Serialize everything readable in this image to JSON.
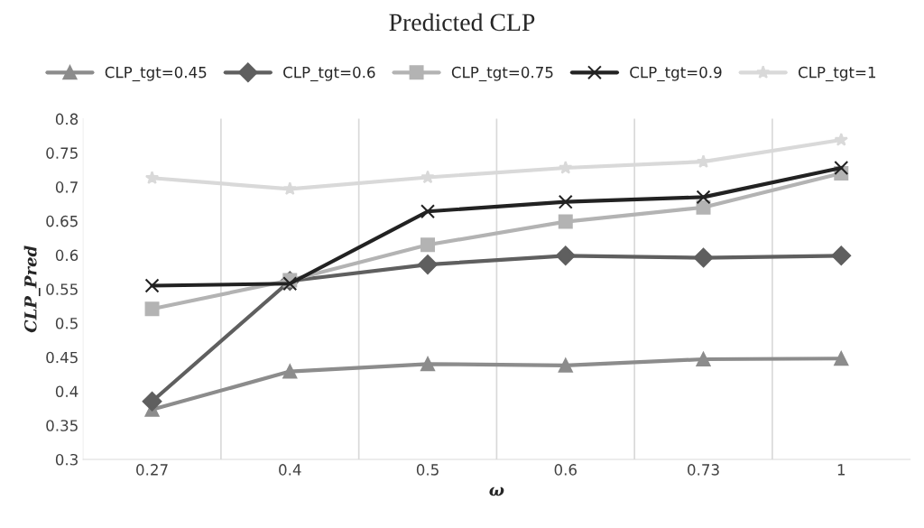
{
  "chart_data": {
    "type": "line",
    "title": "Predicted CLP",
    "xlabel": "ω",
    "ylabel": "CLP_Pred",
    "categories": [
      "0.27",
      "0.4",
      "0.5",
      "0.6",
      "0.73",
      "1"
    ],
    "ylim": [
      0.3,
      0.8
    ],
    "yticks": [
      0.3,
      0.35,
      0.4,
      0.45,
      0.5,
      0.55,
      0.6,
      0.65,
      0.7,
      0.75,
      0.8
    ],
    "grid": "x",
    "legend": "top",
    "series": [
      {
        "name": "CLP_tgt=0.45",
        "color": "#8c8c8c",
        "marker": "triangle",
        "values": [
          0.373,
          0.429,
          0.44,
          0.438,
          0.447,
          0.448
        ]
      },
      {
        "name": "CLP_tgt=0.6",
        "color": "#5f5f5f",
        "marker": "diamond",
        "values": [
          0.385,
          0.562,
          0.586,
          0.599,
          0.596,
          0.599
        ]
      },
      {
        "name": "CLP_tgt=0.75",
        "color": "#b3b3b3",
        "marker": "square",
        "values": [
          0.521,
          0.563,
          0.615,
          0.649,
          0.67,
          0.72
        ]
      },
      {
        "name": "CLP_tgt=0.9",
        "color": "#222222",
        "marker": "cross",
        "values": [
          0.555,
          0.558,
          0.664,
          0.678,
          0.685,
          0.728
        ]
      },
      {
        "name": "CLP_tgt=1",
        "color": "#d9d9d9",
        "marker": "star",
        "values": [
          0.713,
          0.697,
          0.714,
          0.728,
          0.737,
          0.769
        ]
      }
    ]
  }
}
